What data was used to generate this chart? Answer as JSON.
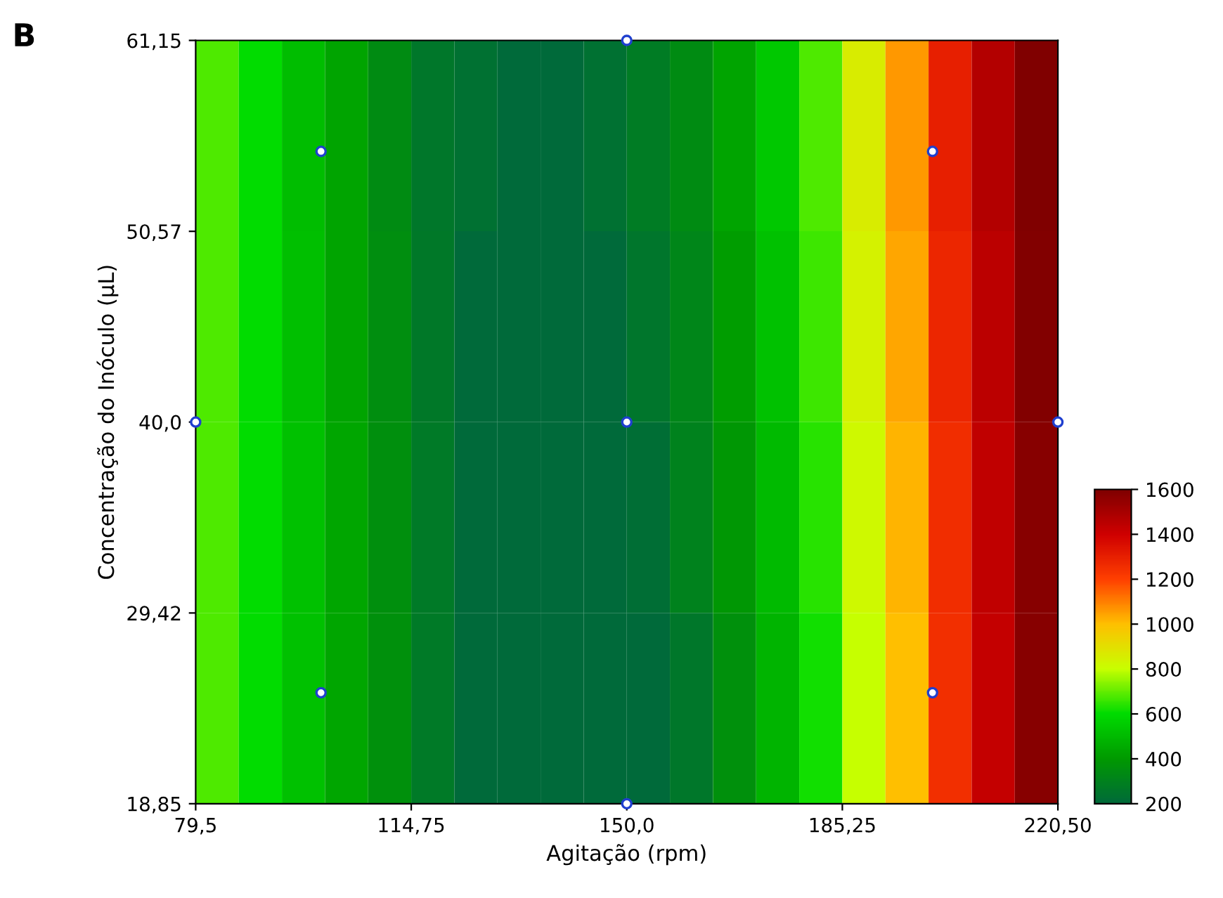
{
  "chart_data": {
    "type": "heatmap",
    "xlabel": "Agitação (rpm)",
    "ylabel": "Concentração do Inóculo (µL)",
    "annotations": [
      "B"
    ],
    "xlim": [
      79.5,
      220.5
    ],
    "ylim": [
      18.85,
      61.15
    ],
    "xticks": [
      {
        "value": 79.5,
        "label": "79,5"
      },
      {
        "value": 114.75,
        "label": "114,75"
      },
      {
        "value": 150,
        "label": "150,0"
      },
      {
        "value": 185.25,
        "label": "185,25"
      },
      {
        "value": 220.5,
        "label": "220,50"
      }
    ],
    "yticks": [
      {
        "value": 18.85,
        "label": "18,85"
      },
      {
        "value": 29.42,
        "label": "29,42"
      },
      {
        "value": 40,
        "label": "40,0"
      },
      {
        "value": 50.57,
        "label": "50,57"
      },
      {
        "value": 61.15,
        "label": "61,15"
      }
    ],
    "cells": [
      [
        680,
        600,
        510,
        430,
        340,
        260,
        230,
        200,
        200,
        230,
        280,
        340,
        430,
        540,
        680,
        860,
        1060,
        1300,
        1470,
        1600
      ],
      [
        680,
        600,
        515,
        435,
        350,
        265,
        200,
        200,
        200,
        200,
        250,
        320,
        410,
        520,
        660,
        840,
        1040,
        1280,
        1450,
        1590
      ],
      [
        680,
        600,
        520,
        440,
        355,
        270,
        200,
        200,
        200,
        200,
        220,
        300,
        390,
        500,
        640,
        820,
        1020,
        1260,
        1440,
        1580
      ],
      [
        680,
        600,
        520,
        440,
        360,
        270,
        200,
        200,
        200,
        200,
        200,
        260,
        360,
        480,
        620,
        800,
        1000,
        1250,
        1430,
        1580
      ]
    ],
    "clim": [
      200,
      1600
    ],
    "cticks": [
      200,
      400,
      600,
      800,
      1000,
      1200,
      1400,
      1600
    ],
    "colors": [
      "#006a3a",
      "#009a00",
      "#00dc00",
      "#c8ff00",
      "#ffc000",
      "#ff4000",
      "#d00000",
      "#800000"
    ],
    "series": [
      {
        "type": "scatter",
        "color": "#ffffff",
        "marker": "circle",
        "x": [
          100,
          100,
          200,
          200,
          79.5,
          220.5,
          150,
          150,
          150
        ],
        "values": [
          25,
          55,
          25,
          55,
          40,
          40,
          18.85,
          61.15,
          40
        ]
      }
    ]
  }
}
